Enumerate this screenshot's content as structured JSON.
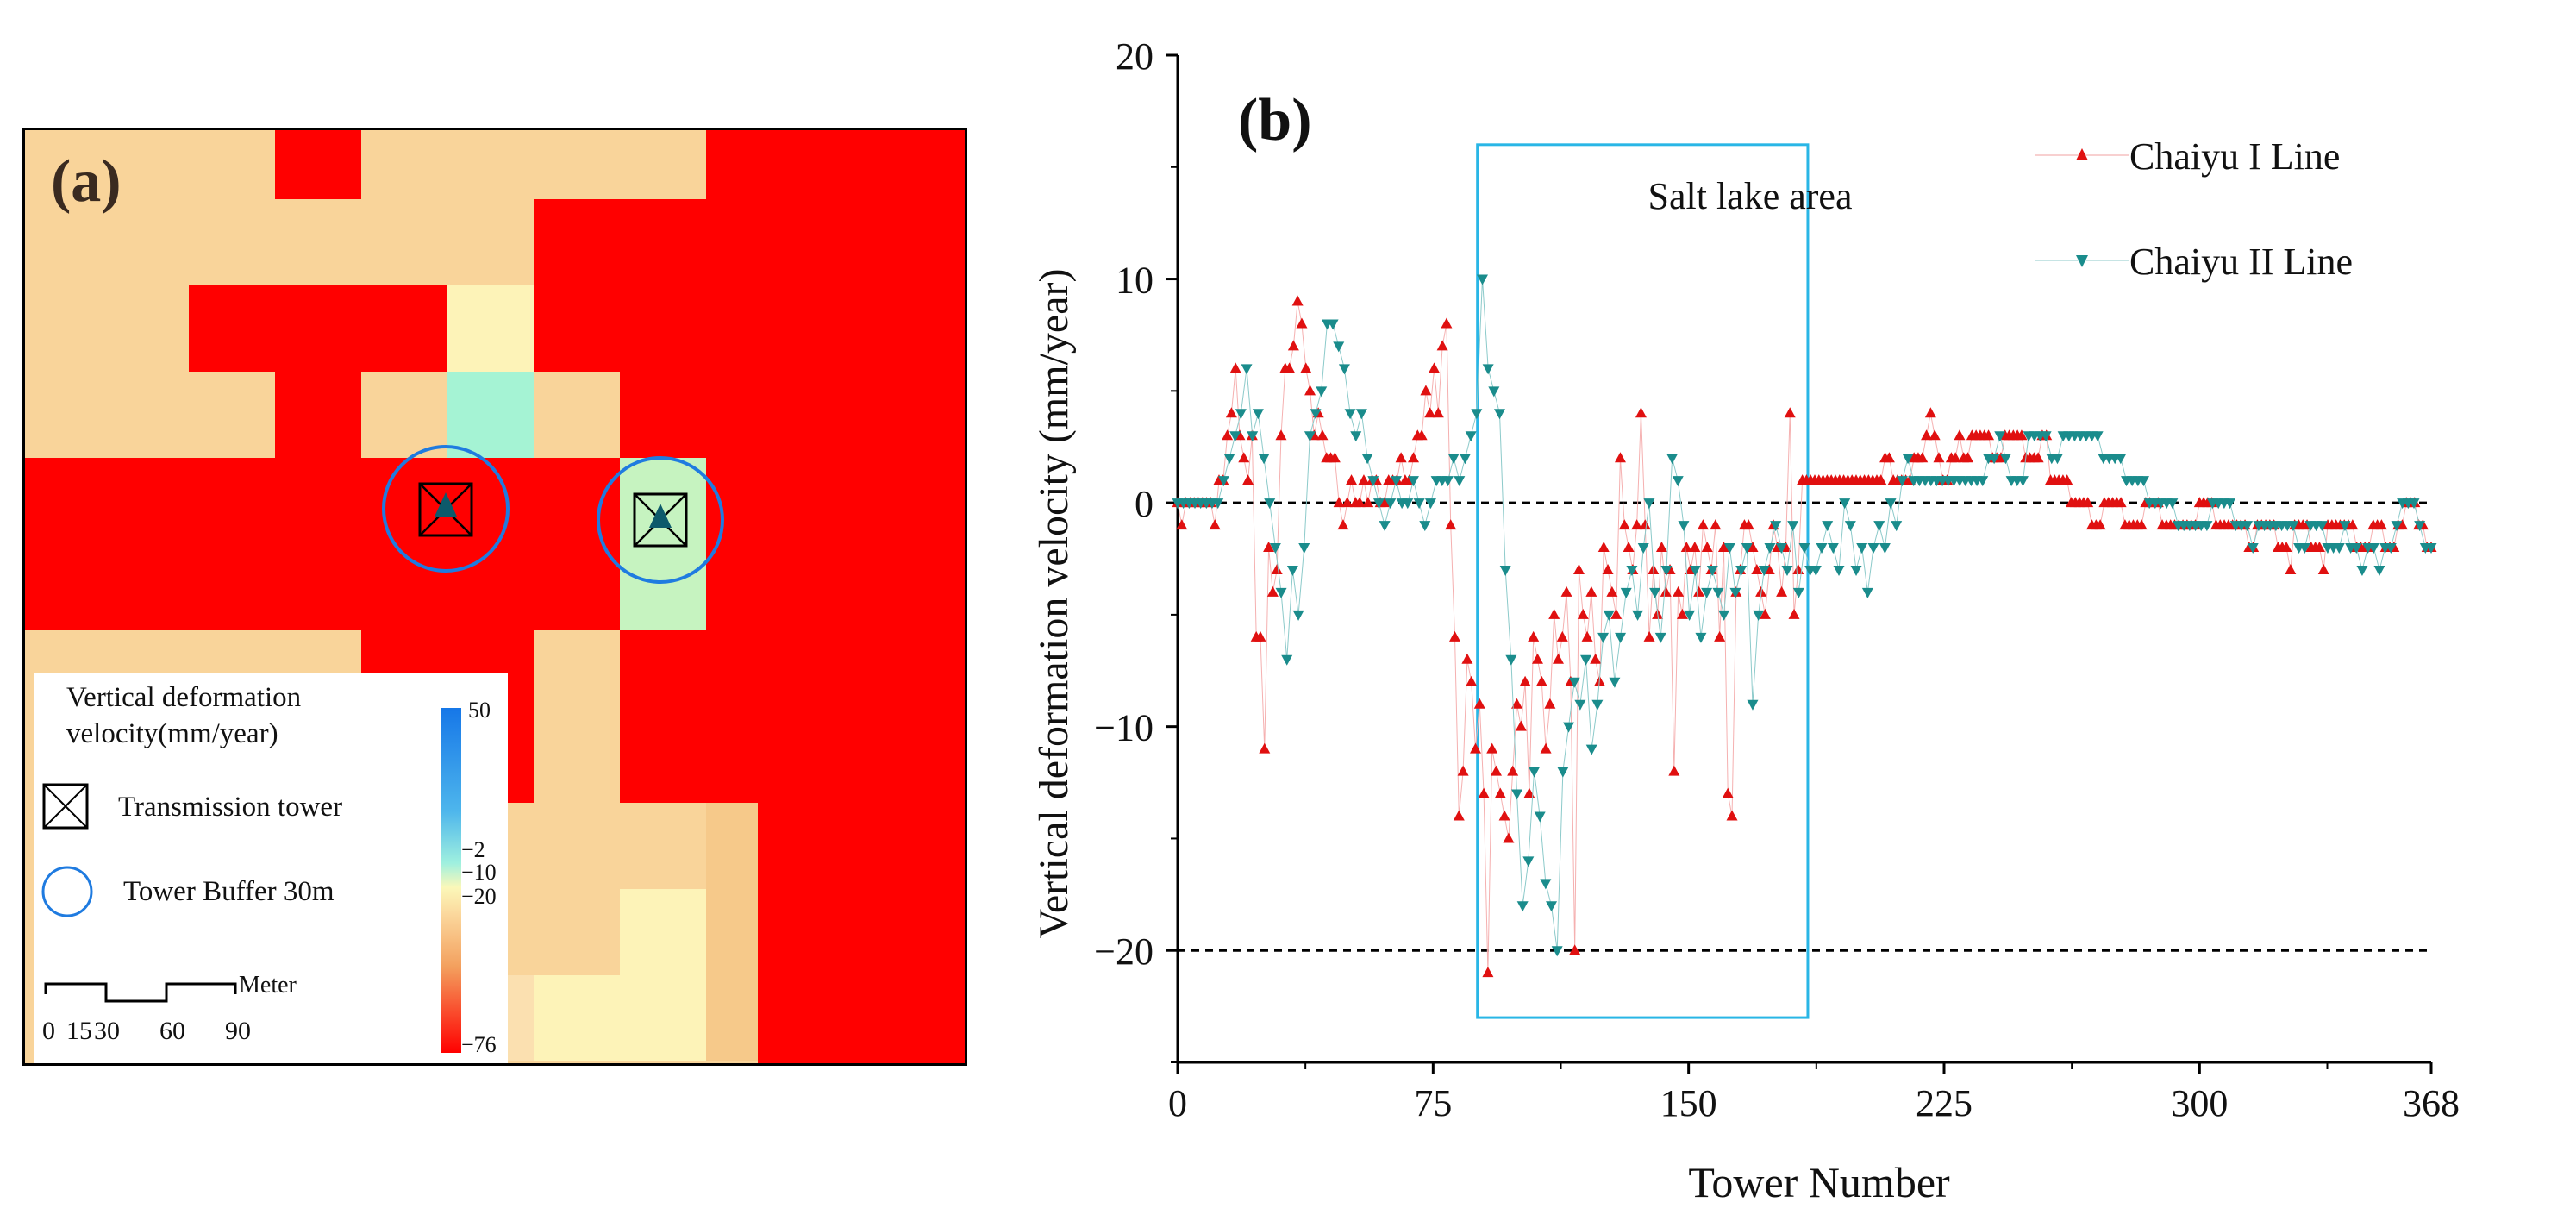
{
  "panel_a": {
    "label": "(a)",
    "legend": {
      "title_line1": "Vertical deformation",
      "title_line2": "velocity(mm/year)",
      "tower_label": "Transmission tower",
      "buffer_label": "Tower Buffer 30m",
      "scale_unit": "Meter",
      "scale_ticks": [
        "0",
        "15",
        "30",
        "60",
        "90"
      ],
      "colorbar_ticks": [
        "50",
        "−2",
        "−10",
        "−20",
        "−76"
      ]
    },
    "colors": {
      "red": "#ff0000",
      "tan": "#f9d49a",
      "blue_circle": "#1f7be0"
    }
  },
  "chart_data": {
    "type": "scatter",
    "panel_label": "(b)",
    "xlabel": "Tower Number",
    "ylabel": "Vertical deformation velocity  (mm/year)",
    "xlim": [
      0,
      368
    ],
    "ylim": [
      -25,
      20
    ],
    "xticks": [
      "0",
      "75",
      "150",
      "225",
      "300",
      "368"
    ],
    "yticks": [
      "−20",
      "−10",
      "0",
      "10",
      "20"
    ],
    "annotation": "Salt lake area",
    "annotation_range": [
      88,
      185
    ],
    "annotation_yrange": [
      -23,
      16
    ],
    "reference_lines": [
      0,
      -20
    ],
    "series": [
      {
        "name": "Chaiyu I Line",
        "marker": "triangle-up",
        "color": "#e01010",
        "values": [
          0,
          -1,
          0,
          0,
          0,
          0,
          0,
          0,
          0,
          -1,
          1,
          1,
          3,
          4,
          6,
          3,
          2,
          1,
          3,
          -6,
          -6,
          -11,
          -2,
          -4,
          -3,
          3,
          6,
          6,
          7,
          9,
          8,
          6,
          5,
          3,
          4,
          3,
          2,
          2,
          2,
          0,
          -1,
          0,
          1,
          0,
          0,
          1,
          0,
          1,
          1,
          0,
          0,
          1,
          1,
          1,
          2,
          1,
          1,
          2,
          3,
          3,
          5,
          4,
          6,
          4,
          7,
          8,
          -1,
          -6,
          -14,
          -12,
          -7,
          -8,
          -11,
          -9,
          -13,
          -21,
          -11,
          -12,
          -13,
          -14,
          -15,
          -12,
          -9,
          -10,
          -8,
          -13,
          -6,
          -7,
          -8,
          -11,
          -9,
          -5,
          -7,
          -6,
          -4,
          -8,
          -20,
          -3,
          -5,
          -6,
          -4,
          -7,
          -8,
          -2,
          -3,
          -4,
          -5,
          2,
          -1,
          -2,
          -3,
          -1,
          4,
          -1,
          -6,
          -3,
          -5,
          -2,
          -4,
          -3,
          -12,
          -4,
          -5,
          -2,
          -3,
          -2,
          -4,
          -1,
          -2,
          -3,
          -1,
          -6,
          -2,
          -13,
          -14,
          -4,
          -3,
          -1,
          -1,
          -2,
          -3,
          -4,
          -5,
          -3,
          -1,
          -2,
          -4,
          -2,
          4,
          -5,
          -3,
          1,
          1,
          1,
          1,
          1,
          1,
          1,
          1,
          1,
          1,
          1,
          1,
          1,
          1,
          1,
          1,
          1,
          1,
          1,
          1,
          2,
          2,
          1,
          1,
          1,
          1,
          1,
          2,
          2,
          2,
          3,
          4,
          3,
          2,
          1,
          1,
          2,
          2,
          3,
          2,
          2,
          3,
          3,
          3,
          3,
          3,
          2,
          2,
          2,
          3,
          3,
          3,
          3,
          3,
          2,
          2,
          2,
          2,
          3,
          3,
          1,
          1,
          1,
          1,
          1,
          0,
          0,
          0,
          0,
          0,
          -1,
          -1,
          -1,
          0,
          0,
          0,
          0,
          0,
          -1,
          -1,
          -1,
          -1,
          -1,
          0,
          0,
          0,
          0,
          -1,
          -1,
          -1,
          -1,
          -1,
          -1,
          -1,
          -1,
          -1,
          0,
          0,
          0,
          0,
          -1,
          -1,
          -1,
          -1,
          -1,
          -1,
          -1,
          -1,
          -2,
          -2,
          -1,
          -1,
          -1,
          -1,
          -1,
          -2,
          -2,
          -2,
          -3,
          -1,
          -1,
          -1,
          -1,
          -2,
          -2,
          -2,
          -3,
          -1,
          -1,
          -1,
          -1,
          -1,
          -1,
          -1,
          -2,
          -2,
          -2,
          -2,
          -1,
          -1,
          -1,
          -2,
          -2,
          -2,
          -1,
          -1,
          0,
          0,
          0,
          -1,
          -1,
          -2,
          -2
        ]
      },
      {
        "name": "Chaiyu II Line",
        "marker": "triangle-down",
        "color": "#1a8c8c",
        "values": [
          0,
          0,
          0,
          0,
          0,
          0,
          0,
          0,
          1,
          2,
          3,
          4,
          6,
          3,
          4,
          2,
          0,
          -2,
          -4,
          -7,
          -3,
          -5,
          -2,
          3,
          4,
          5,
          8,
          8,
          7,
          6,
          4,
          3,
          4,
          2,
          1,
          0,
          -1,
          0,
          1,
          0,
          0,
          1,
          0,
          -1,
          0,
          1,
          1,
          1,
          2,
          1,
          2,
          3,
          4,
          10,
          6,
          5,
          4,
          -3,
          -7,
          -13,
          -18,
          -16,
          -12,
          -14,
          -17,
          -18,
          -20,
          -12,
          -10,
          -8,
          -9,
          -7,
          -11,
          -9,
          -6,
          -5,
          -8,
          -6,
          -4,
          -3,
          -5,
          -2,
          0,
          -4,
          -6,
          -3,
          2,
          1,
          -1,
          -5,
          -3,
          -6,
          -4,
          -3,
          -4,
          -5,
          -2,
          -4,
          -3,
          -2,
          -9,
          -5,
          -3,
          -2,
          -1,
          -2,
          -3,
          -1,
          -4,
          -2,
          -3,
          -3,
          -2,
          -1,
          -2,
          -3,
          0,
          -1,
          -3,
          -2,
          -4,
          -2,
          -1,
          -2,
          0,
          -1,
          1,
          2,
          1,
          1,
          1,
          1,
          1,
          1,
          1,
          1,
          1,
          1,
          1,
          1,
          1,
          2,
          2,
          3,
          2,
          1,
          1,
          1,
          3,
          3,
          3,
          3,
          2,
          2,
          3,
          3,
          3,
          3,
          3,
          3,
          3,
          2,
          2,
          2,
          2,
          1,
          1,
          1,
          1,
          0,
          0,
          0,
          0,
          0,
          -1,
          -1,
          -1,
          -1,
          -1,
          -1,
          0,
          0,
          0,
          0,
          -1,
          -1,
          -1,
          -2,
          -1,
          -1,
          -1,
          -1,
          -1,
          -1,
          -1,
          -2,
          -2,
          -1,
          -1,
          -1,
          -2,
          -2,
          -2,
          -1,
          -2,
          -2,
          -3,
          -2,
          -2,
          -3,
          -2,
          -2,
          -1,
          0,
          0,
          0,
          -1,
          -2,
          -2
        ]
      }
    ]
  }
}
